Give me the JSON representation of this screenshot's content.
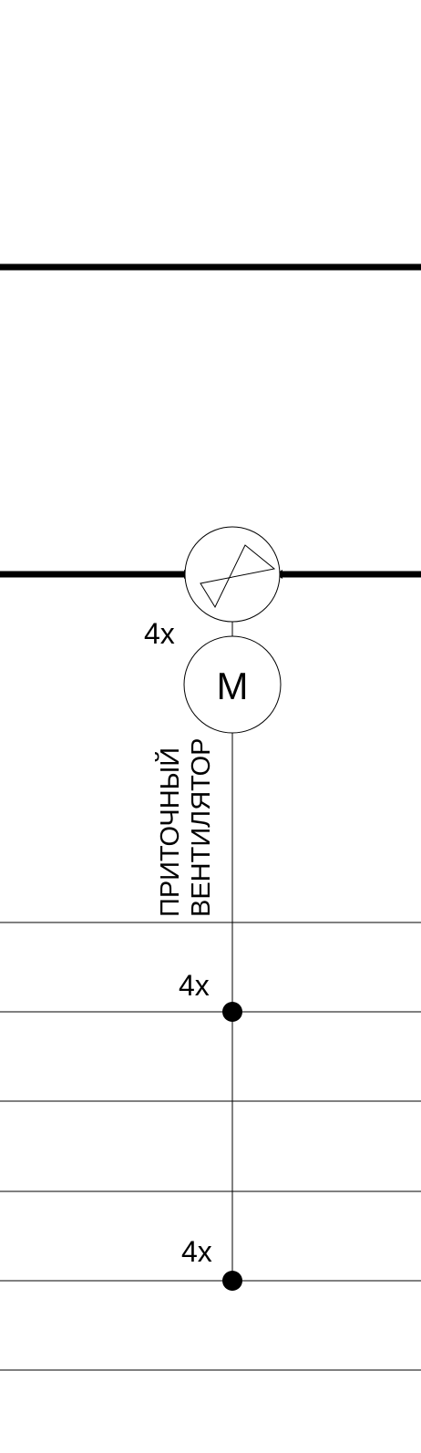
{
  "diagram": {
    "motor_label": "M",
    "fan_label_line1": "ПРИТОЧНЫЙ",
    "fan_label_line2": "ВЕНТИЛЯТОР",
    "multiplier_top": "4x",
    "multiplier_mid": "4x",
    "multiplier_bottom": "4x"
  },
  "colors": {
    "line": "#000000",
    "background": "#ffffff"
  }
}
